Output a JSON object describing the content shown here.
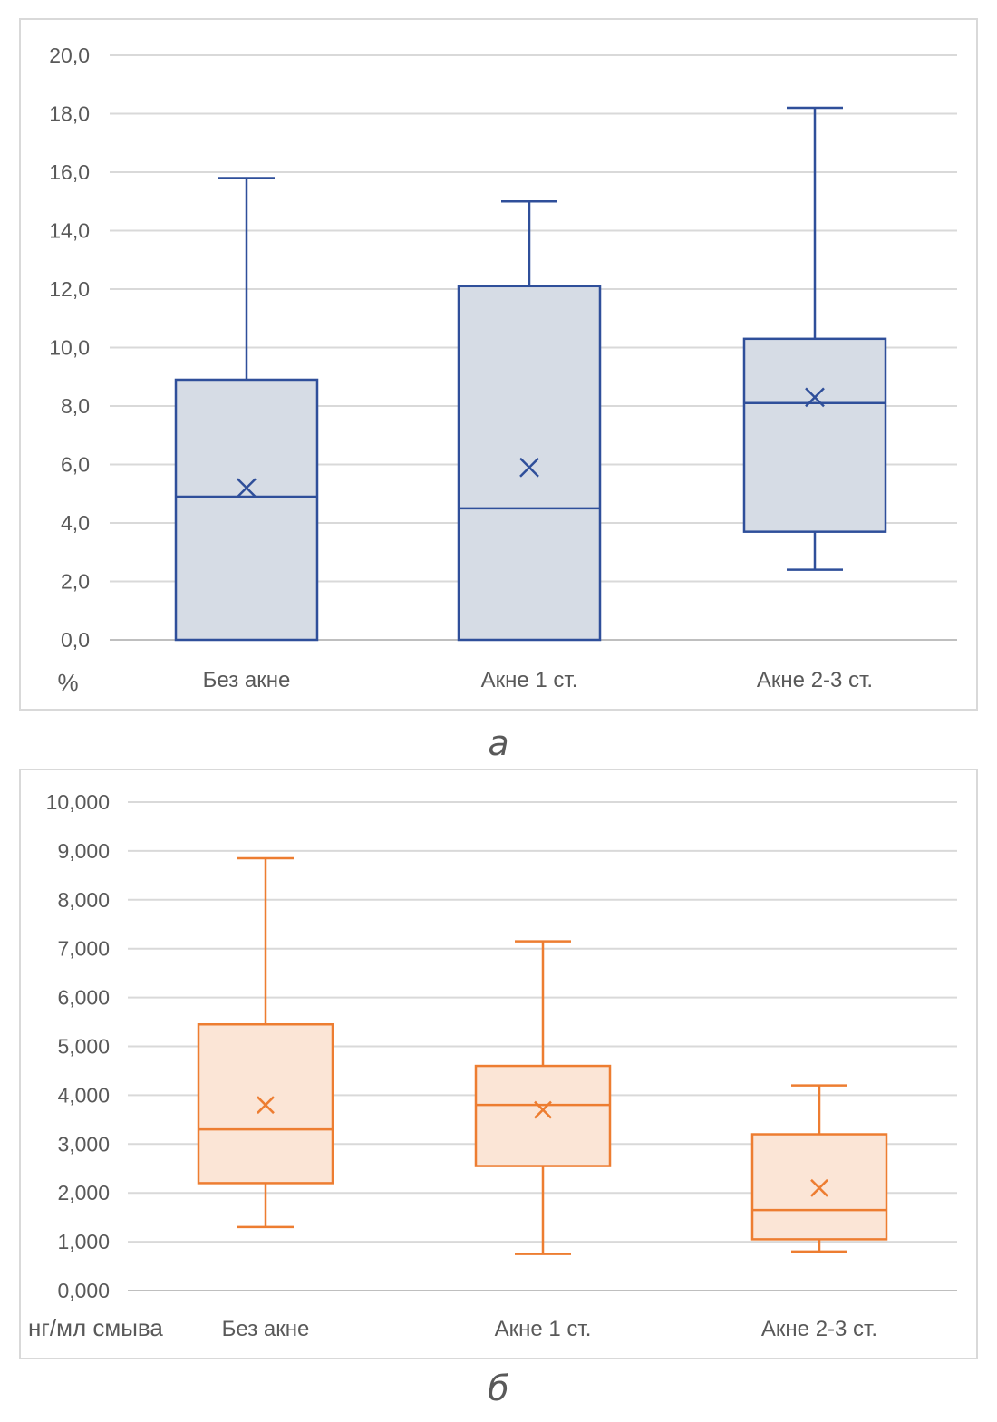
{
  "chart_data": [
    {
      "type": "boxplot",
      "panel": "a",
      "caption": "а",
      "unit_label": "%",
      "categories": [
        "Без акне",
        "Акне 1 ст.",
        "Акне 2-3 ст."
      ],
      "y_ticks": [
        "0,0",
        "2,0",
        "4,0",
        "6,0",
        "8,0",
        "10,0",
        "12,0",
        "14,0",
        "16,0",
        "18,0",
        "20,0"
      ],
      "ylim": [
        0,
        20
      ],
      "grid": true,
      "color": "#2f4f9a",
      "fill": "#d6dce5",
      "boxes": [
        {
          "whisker_low": 0.0,
          "q1": 0.0,
          "median": 4.9,
          "q3": 8.9,
          "whisker_high": 15.8,
          "mean": 5.2
        },
        {
          "whisker_low": 0.0,
          "q1": 0.0,
          "median": 4.5,
          "q3": 12.1,
          "whisker_high": 15.0,
          "mean": 5.9
        },
        {
          "whisker_low": 2.4,
          "q1": 3.7,
          "median": 8.1,
          "q3": 10.3,
          "whisker_high": 18.2,
          "mean": 8.3
        }
      ]
    },
    {
      "type": "boxplot",
      "panel": "b",
      "caption": "б",
      "unit_label": "нг/мл смыва",
      "categories": [
        "Без акне",
        "Акне 1 ст.",
        "Акне 2-3 ст."
      ],
      "y_ticks": [
        "0,000",
        "1,000",
        "2,000",
        "3,000",
        "4,000",
        "5,000",
        "6,000",
        "7,000",
        "8,000",
        "9,000",
        "10,000"
      ],
      "ylim": [
        0,
        10
      ],
      "grid": true,
      "color": "#ed7d31",
      "fill": "#fbe5d6",
      "boxes": [
        {
          "whisker_low": 1.3,
          "q1": 2.2,
          "median": 3.3,
          "q3": 5.45,
          "whisker_high": 8.85,
          "mean": 3.8
        },
        {
          "whisker_low": 0.75,
          "q1": 2.55,
          "median": 3.8,
          "q3": 4.6,
          "whisker_high": 7.15,
          "mean": 3.7
        },
        {
          "whisker_low": 0.8,
          "q1": 1.05,
          "median": 1.65,
          "q3": 3.2,
          "whisker_high": 4.2,
          "mean": 2.1
        }
      ]
    }
  ]
}
